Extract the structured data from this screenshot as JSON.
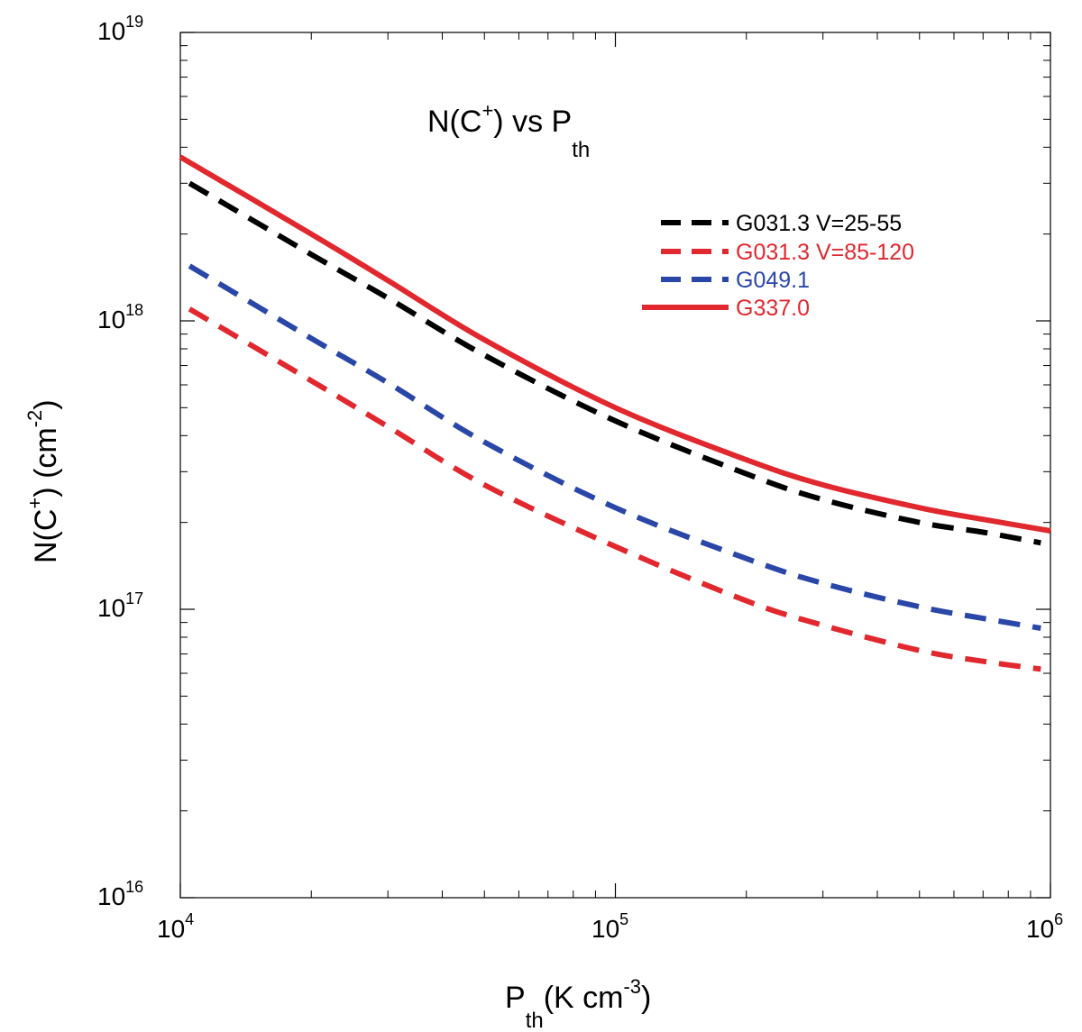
{
  "chart_data": {
    "type": "line",
    "title": {
      "base": "N(C",
      "sup": "+",
      "mid": ") vs P",
      "sub": "th"
    },
    "xlabel": {
      "base": "P",
      "sub": "th",
      "rest": "(K cm",
      "sup": "-3",
      "end": ")"
    },
    "ylabel": {
      "base": "N(C",
      "sup1": "+",
      "mid": ") (cm",
      "sup2": "-2",
      "end": ")"
    },
    "x_scale": "log",
    "y_scale": "log",
    "xlim": [
      10000,
      1000000
    ],
    "ylim": [
      1e+16,
      1e+19
    ],
    "x_ticks": [
      {
        "value": 10000,
        "base": "10",
        "exp": "4"
      },
      {
        "value": 100000,
        "base": "10",
        "exp": "5"
      },
      {
        "value": 1000000,
        "base": "10",
        "exp": "6"
      }
    ],
    "y_ticks": [
      {
        "value": 1e+16,
        "base": "10",
        "exp": "16"
      },
      {
        "value": 1e+17,
        "base": "10",
        "exp": "17"
      },
      {
        "value": 1e+18,
        "base": "10",
        "exp": "18"
      },
      {
        "value": 1e+19,
        "base": "10",
        "exp": "19"
      }
    ],
    "legend_position": "upper-right",
    "series": [
      {
        "name": "G031.3 V=25-55",
        "color": "#000000",
        "dash": "dashed",
        "x": [
          10500,
          20000,
          30000,
          50000,
          100000,
          200000,
          300000,
          500000,
          700000,
          950000
        ],
        "y": [
          3e+18,
          1.7e+18,
          1.2e+18,
          7.6e+17,
          4.5e+17,
          2.95e+17,
          2.4e+17,
          2e+17,
          1.85e+17,
          1.7e+17
        ]
      },
      {
        "name": "G031.3 V=85-120",
        "color": "#e0282e",
        "dash": "dashed",
        "x": [
          10500,
          20000,
          30000,
          50000,
          100000,
          200000,
          300000,
          500000,
          700000,
          950000
        ],
        "y": [
          1.1e+18,
          6.2e+17,
          4.3e+17,
          2.7e+17,
          1.65e+17,
          1.07e+17,
          8.8e+16,
          7.2e+16,
          6.6e+16,
          6.2e+16
        ]
      },
      {
        "name": "G049.1",
        "color": "#2a47a8",
        "dash": "dashed",
        "x": [
          10500,
          20000,
          30000,
          50000,
          100000,
          200000,
          300000,
          500000,
          700000,
          950000
        ],
        "y": [
          1.55e+18,
          8.7e+17,
          6.1e+17,
          3.8e+17,
          2.25e+17,
          1.5e+17,
          1.23e+17,
          1.02e+17,
          9.3e+16,
          8.6e+16
        ]
      },
      {
        "name": "G337.0",
        "color": "#e0282e",
        "dash": "solid",
        "x": [
          10000,
          20000,
          30000,
          50000,
          100000,
          200000,
          300000,
          500000,
          700000,
          1000000
        ],
        "y": [
          3.7e+18,
          2e+18,
          1.38e+18,
          8.6e+17,
          5e+17,
          3.3e+17,
          2.7e+17,
          2.25e+17,
          2.05e+17,
          1.87e+17
        ]
      }
    ]
  }
}
